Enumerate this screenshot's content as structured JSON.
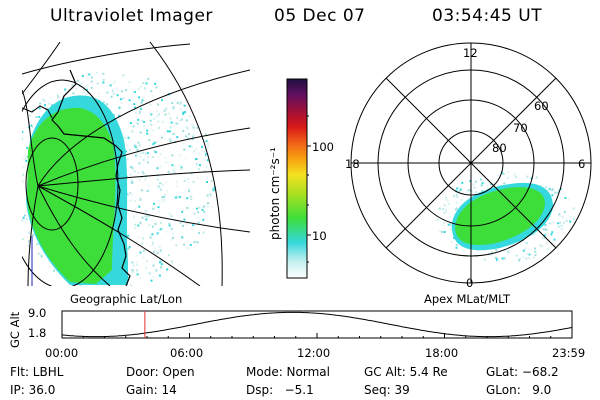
{
  "header": {
    "title": "Ultraviolet Imager",
    "date": "05 Dec 07",
    "time": "03:54:45 UT"
  },
  "panels": {
    "geographic_label": "Geographic Lat/Lon",
    "apex_label": "Apex MLat/MLT"
  },
  "colorbar": {
    "unit_label": "photon cm⁻²s⁻¹",
    "ticks": [
      "100",
      "10"
    ],
    "scale": "log"
  },
  "polar_plot": {
    "mlt_labels": {
      "top": "12",
      "left": "18",
      "right": "6",
      "bottom": "0"
    },
    "lat_labels": [
      "80",
      "70",
      "60"
    ]
  },
  "altitude_plot": {
    "ylabel": "GC Alt",
    "yticks": [
      "9.0",
      "1.8"
    ],
    "xticks": [
      "00:00",
      "06:00",
      "12:00",
      "18:00",
      "23:59"
    ],
    "current_time_marker_hour": 3.9
  },
  "info": {
    "filter": "Flt: LBHL",
    "door": "Door: Open",
    "mode": "Mode: Normal",
    "gc_alt": "GC Alt: 5.4 Re",
    "glat": "GLat: −68.2",
    "ip": "IP: 36.0",
    "gain": "Gain: 14",
    "dsp": "Dsp:   −5.1",
    "seq": "Seq: 39",
    "glon": "GLon:   9.0"
  },
  "colors": {
    "aurora_green": "#3ede3a",
    "aurora_cyan": "#35d8dc",
    "background": "#ffffff",
    "marker": "#e03030",
    "coast_line": "#2020c0"
  }
}
